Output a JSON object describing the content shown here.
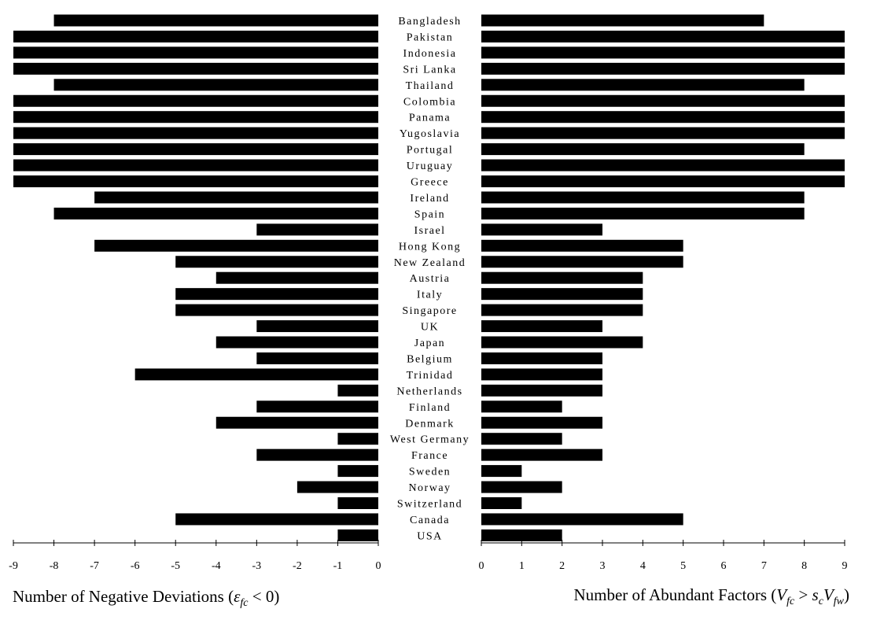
{
  "chart_data": {
    "type": "bar",
    "orientation": "horizontal",
    "layout": "back-to-back",
    "categories": [
      "Bangladesh",
      "Pakistan",
      "Indonesia",
      "Sri Lanka",
      "Thailand",
      "Colombia",
      "Panama",
      "Yugoslavia",
      "Portugal",
      "Uruguay",
      "Greece",
      "Ireland",
      "Spain",
      "Israel",
      "Hong Kong",
      "New Zealand",
      "Austria",
      "Italy",
      "Singapore",
      "UK",
      "Japan",
      "Belgium",
      "Trinidad",
      "Netherlands",
      "Finland",
      "Denmark",
      "West Germany",
      "France",
      "Sweden",
      "Norway",
      "Switzerland",
      "Canada",
      "USA"
    ],
    "series": [
      {
        "values": [
          -8,
          -9,
          -9,
          -9,
          -8,
          -9,
          -9,
          -9,
          -9,
          -9,
          -9,
          -7,
          -8,
          -3,
          -7,
          -5,
          -4,
          -5,
          -5,
          -3,
          -4,
          -3,
          -6,
          -1,
          -3,
          -4,
          -1,
          -3,
          -1,
          -2,
          -1,
          -5,
          -1
        ]
      },
      {
        "values": [
          7,
          9,
          9,
          9,
          8,
          9,
          9,
          9,
          8,
          9,
          9,
          8,
          8,
          3,
          5,
          5,
          4,
          4,
          4,
          3,
          4,
          3,
          3,
          3,
          2,
          3,
          2,
          3,
          1,
          2,
          1,
          5,
          2
        ]
      }
    ],
    "left_axis": {
      "ticks": [
        "-9",
        "-8",
        "-7",
        "-6",
        "-5",
        "-4",
        "-3",
        "-2",
        "-1",
        "0"
      ],
      "xlim": [
        -9,
        0
      ],
      "xlabel_parts": {
        "text": "Number of Negative Deviations (",
        "symbol": "ε",
        "sub": "fc",
        "tail": " < 0)"
      }
    },
    "right_axis": {
      "ticks": [
        "0",
        "1",
        "2",
        "3",
        "4",
        "5",
        "6",
        "7",
        "8",
        "9"
      ],
      "xlim": [
        0,
        9
      ],
      "xlabel_parts": {
        "text": "Number of Abundant Factors (",
        "v1": "V",
        "sub1": "fc",
        "op": " > ",
        "s": "s",
        "sub2": "c",
        "v2": "V",
        "sub3": "fw",
        "tail": ")"
      }
    },
    "grid": false,
    "legend": "none",
    "bar_color": "#000000"
  }
}
